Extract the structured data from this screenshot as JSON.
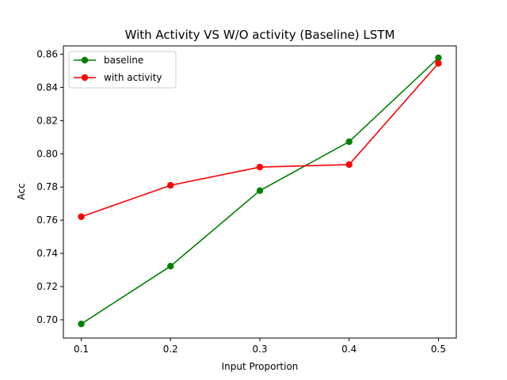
{
  "chart_data": {
    "type": "line",
    "title": "With Activity VS W/O activity (Baseline) LSTM",
    "xlabel": "Input Proportion",
    "ylabel": "Acc",
    "x": [
      0.1,
      0.2,
      0.3,
      0.4,
      0.5
    ],
    "xlim": [
      0.08,
      0.52
    ],
    "ylim": [
      0.689,
      0.865
    ],
    "xticks": [
      "0.1",
      "0.2",
      "0.3",
      "0.4",
      "0.5"
    ],
    "yticks": [
      "0.70",
      "0.72",
      "0.74",
      "0.76",
      "0.78",
      "0.80",
      "0.82",
      "0.84",
      "0.86"
    ],
    "grid": false,
    "legend_position": "upper-left",
    "series": [
      {
        "name": "baseline",
        "color": "#008000",
        "marker": "circle",
        "values": [
          0.6975,
          0.7323,
          0.7778,
          0.8073,
          0.8578
        ]
      },
      {
        "name": "with activity",
        "color": "#ff0000",
        "marker": "circle",
        "values": [
          0.7621,
          0.781,
          0.792,
          0.7935,
          0.8545
        ]
      }
    ]
  }
}
